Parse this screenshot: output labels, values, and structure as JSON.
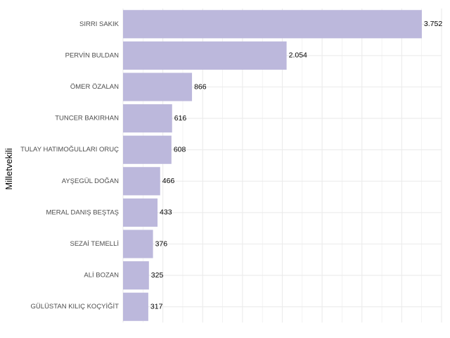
{
  "chart_data": {
    "type": "bar",
    "orientation": "horizontal",
    "title": "",
    "xlabel": "",
    "ylabel": "Milletvekili",
    "categories": [
      "SIRRI SAKIK",
      "PERVİN BULDAN",
      "ÖMER ÖZALAN",
      "TUNCER BAKIRHAN",
      "TULAY HATIMOĞULLARI ORUÇ",
      "AYŞEGÜL DOĞAN",
      "MERAL DANIŞ BEŞTAŞ",
      "SEZAİ TEMELLİ",
      "ALİ BOZAN",
      "GÜLÜSTAN KILIÇ KOÇYİĞİT"
    ],
    "values": [
      3752,
      2054,
      866,
      616,
      608,
      466,
      433,
      376,
      325,
      317
    ],
    "value_labels": [
      "3.752",
      "2.054",
      "866",
      "616",
      "608",
      "466",
      "433",
      "376",
      "325",
      "317"
    ],
    "xlim": [
      0,
      4000
    ],
    "x_grid_step": 500,
    "bar_color": "#bcb8dc",
    "grid_color": "#ebebeb",
    "grid": true,
    "x_tick_labels_shown": false
  }
}
